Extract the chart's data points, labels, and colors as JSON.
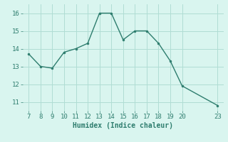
{
  "x": [
    7,
    8,
    9,
    10,
    11,
    12,
    13,
    14,
    15,
    16,
    17,
    18,
    19,
    20,
    23
  ],
  "y": [
    13.7,
    13.0,
    12.9,
    13.8,
    14.0,
    14.3,
    16.0,
    16.0,
    14.5,
    15.0,
    15.0,
    14.3,
    13.3,
    11.9,
    10.8
  ],
  "line_color": "#2e7d6e",
  "marker_color": "#2e7d6e",
  "bg_color": "#d9f5ef",
  "grid_color": "#b0ddd4",
  "xlabel": "Humidex (Indice chaleur)",
  "xlabel_fontsize": 7,
  "tick_fontsize": 6.5,
  "ylim": [
    10.5,
    16.5
  ],
  "yticks": [
    11,
    12,
    13,
    14,
    15,
    16
  ],
  "xticks": [
    7,
    8,
    9,
    10,
    11,
    12,
    13,
    14,
    15,
    16,
    17,
    18,
    19,
    20,
    23
  ],
  "xlim": [
    6.5,
    23.5
  ]
}
